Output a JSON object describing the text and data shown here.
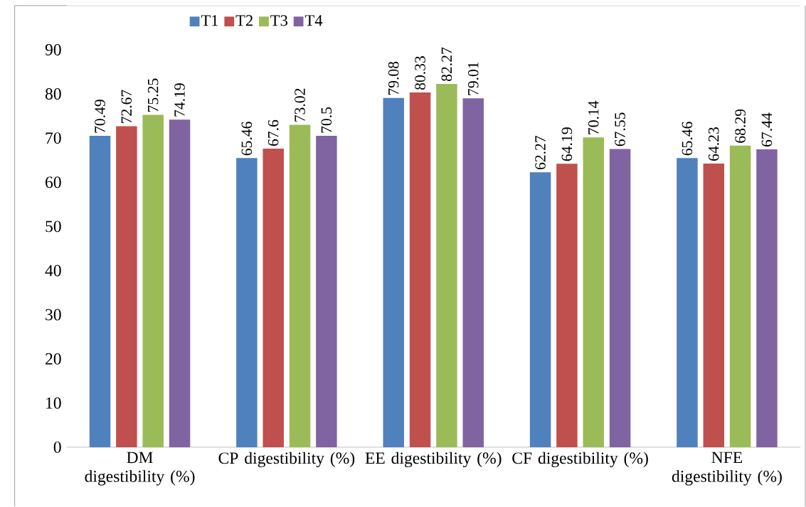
{
  "chart_data": {
    "type": "bar",
    "categories": [
      "DM digestibility (%)",
      "CP digestibility (%)",
      "EE digestibility (%)",
      "CF digestibility (%)",
      "NFE digestibility (%)"
    ],
    "series": [
      {
        "name": "T1",
        "color": "#4f81bd",
        "values": [
          70.49,
          65.46,
          79.08,
          62.27,
          65.46
        ]
      },
      {
        "name": "T2",
        "color": "#c0504d",
        "values": [
          72.67,
          67.6,
          80.33,
          64.19,
          64.23
        ]
      },
      {
        "name": "T3",
        "color": "#9bbb59",
        "values": [
          75.25,
          73.02,
          82.27,
          70.14,
          68.29
        ]
      },
      {
        "name": "T4",
        "color": "#8064a2",
        "values": [
          74.19,
          70.5,
          79.01,
          67.55,
          67.44
        ]
      }
    ],
    "ylim": [
      0,
      100
    ],
    "yticks": [
      0,
      10,
      20,
      30,
      40,
      50,
      60,
      70,
      80,
      90
    ],
    "data_labels": true,
    "legend": "top",
    "grid": false
  }
}
